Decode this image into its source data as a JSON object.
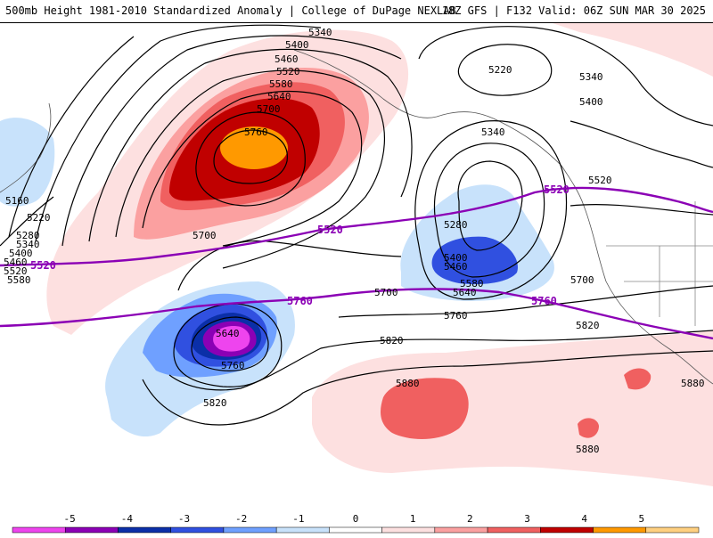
{
  "header": {
    "title": "500mb Height 1981-2010 Standardized Anomaly | College of DuPage NEXLAB",
    "run_info": "18Z GFS | F132 Valid: 06Z SUN MAR 30 2025"
  },
  "contour_labels": {
    "c5340a": "5340",
    "c5400a": "5400",
    "c5460a": "5460",
    "c5520a": "5520",
    "c5580a": "5580",
    "c5640a": "5640",
    "c5700a": "5700",
    "c5760a": "5760",
    "c5220a": "5220",
    "c5340b": "5340",
    "c5400b": "5400",
    "c5340c": "5340",
    "c5160": "5160",
    "c5220b": "5220",
    "c5280a": "5280",
    "c5340d": "5340",
    "c5400c": "5400",
    "c5460b": "5460",
    "c5520b": "5520",
    "c5580b": "5580",
    "c5700b": "5700",
    "c5280b": "5280",
    "c5400d": "5400",
    "c5460c": "5460",
    "c5580c": "5580",
    "c5640b": "5640",
    "c5700c": "5700",
    "c5760b": "5760",
    "c5700d": "5700",
    "c5520c": "5520",
    "c5640c": "5640",
    "c5760c": "5760",
    "c5820a": "5820",
    "c5820b": "5820",
    "c5820c": "5820",
    "c5880a": "5880",
    "c5880b": "5880",
    "c5880c": "5880"
  },
  "highlight_labels": {
    "p5520a": "5520",
    "p5520b": "5520",
    "p5520c": "5520",
    "p5760a": "5760",
    "p5760b": "5760"
  },
  "legend": {
    "ticks": [
      "-5",
      "-4",
      "-3",
      "-2",
      "-1",
      "0",
      "1",
      "2",
      "3",
      "4",
      "5"
    ],
    "colors": [
      "#ee44ee",
      "#8b00b5",
      "#0b2fa8",
      "#3050e0",
      "#6fa0ff",
      "#c8e2fb",
      "#ffffff",
      "#fde0e0",
      "#fba0a0",
      "#f06060",
      "#c00000",
      "#ff9900",
      "#ffd080"
    ]
  },
  "colors": {
    "highlight_contour": "#8b00b5",
    "contour": "#000000"
  }
}
